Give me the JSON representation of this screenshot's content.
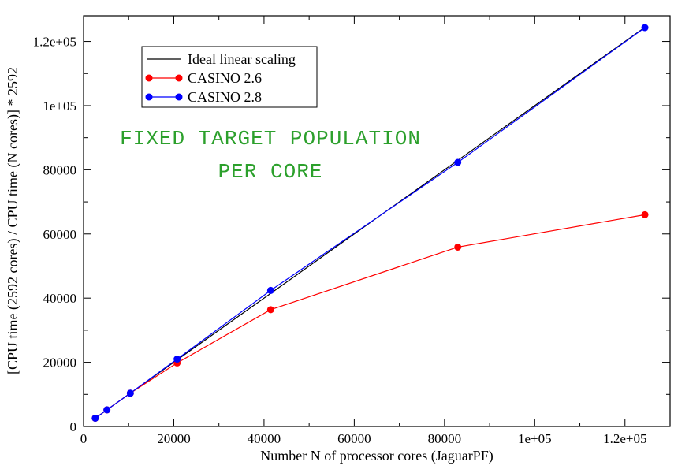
{
  "chart_data": {
    "type": "line",
    "xlabel": "Number N of processor cores (JaguarPF)",
    "ylabel": "[CPU time (2592 cores) / CPU time (N cores)] * 2592",
    "xlim": [
      0,
      130000
    ],
    "ylim": [
      0,
      128000
    ],
    "x_ticks": [
      {
        "value": 0,
        "label": "0"
      },
      {
        "value": 20000,
        "label": "20000"
      },
      {
        "value": 40000,
        "label": "40000"
      },
      {
        "value": 60000,
        "label": "60000"
      },
      {
        "value": 80000,
        "label": "80000"
      },
      {
        "value": 100000,
        "label": "1e+05"
      },
      {
        "value": 120000,
        "label": "1.2e+05"
      }
    ],
    "y_ticks": [
      {
        "value": 0,
        "label": "0"
      },
      {
        "value": 20000,
        "label": "20000"
      },
      {
        "value": 40000,
        "label": "40000"
      },
      {
        "value": 60000,
        "label": "60000"
      },
      {
        "value": 80000,
        "label": "80000"
      },
      {
        "value": 100000,
        "label": "1e+05"
      },
      {
        "value": 120000,
        "label": "1.2e+05"
      }
    ],
    "grid": false,
    "legend_position": "top-left",
    "annotation_lines": [
      "FIXED TARGET POPULATION",
      "PER CORE"
    ],
    "series": [
      {
        "name": "Ideal linear scaling",
        "color": "#000000",
        "markers": false,
        "x": [
          2592,
          124416
        ],
        "y": [
          2592,
          124416
        ]
      },
      {
        "name": "CASINO 2.6",
        "color": "#ff0000",
        "markers": true,
        "x": [
          2592,
          5184,
          10368,
          20736,
          41472,
          82944,
          124416
        ],
        "y": [
          2592,
          5184,
          10368,
          19800,
          36400,
          55900,
          66000
        ]
      },
      {
        "name": "CASINO 2.8",
        "color": "#0000ff",
        "markers": true,
        "x": [
          2592,
          5184,
          10368,
          20736,
          41472,
          82944,
          124416
        ],
        "y": [
          2592,
          5184,
          10368,
          21000,
          42400,
          82300,
          124300
        ]
      }
    ]
  }
}
